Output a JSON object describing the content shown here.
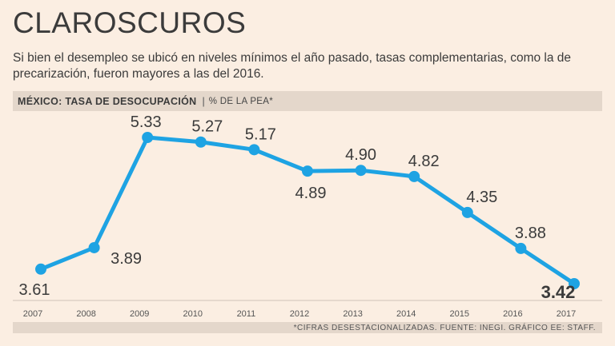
{
  "title": "CLAROSCUROS",
  "subtitle": "Si bien el desempleo se ubicó en niveles mínimos el año pasado, tasas complementarias, como la de precarización, fueron mayores a las del 2016.",
  "header": {
    "label": "MÉXICO: TASA DE DESOCUPACIÓN",
    "separator": "|",
    "unit": "% DE LA PEA*"
  },
  "footer": "*CIFRAS DESESTACIONALIZADAS. FUENTE: INEGI. GRÁFICO EE: STAFF.",
  "colors": {
    "line": "#1ea3e3",
    "background": "#fbeee2",
    "bar": "#e4d7cb",
    "text": "#3b3b3b"
  },
  "chart_data": {
    "type": "line",
    "title": "MÉXICO: TASA DE DESOCUPACIÓN",
    "ylabel": "% DE LA PEA*",
    "categories": [
      "2007",
      "2008",
      "2009",
      "2010",
      "2011",
      "2012",
      "2013",
      "2014",
      "2015",
      "2016",
      "2017"
    ],
    "series": [
      {
        "values": [
          3.61,
          3.89,
          5.33,
          5.27,
          5.17,
          4.89,
          4.9,
          4.82,
          4.35,
          3.88,
          3.42
        ]
      }
    ],
    "data_labels": [
      "3.61",
      "3.89",
      "5.33",
      "5.27",
      "5.17",
      "4.89",
      "4.90",
      "4.82",
      "4.35",
      "3.88",
      "3.42"
    ],
    "ylim": [
      3.42,
      5.33
    ],
    "grid": false
  }
}
